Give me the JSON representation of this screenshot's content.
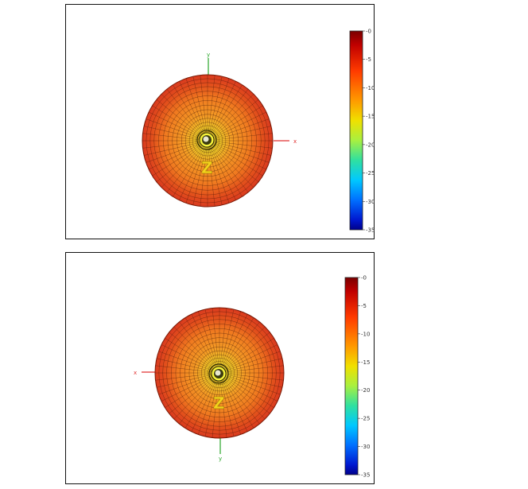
{
  "panels": [
    {
      "axis_labels": {
        "x": "x",
        "y": "y",
        "z": "Z"
      },
      "colorbar": {
        "ticks": [
          "-0",
          "-5",
          "-10",
          "-15",
          "-20",
          "-25",
          "-30",
          "-35"
        ]
      }
    },
    {
      "axis_labels": {
        "x": "x",
        "y": "y",
        "z": "Z"
      },
      "colorbar": {
        "ticks": [
          "-0",
          "-5",
          "-10",
          "-15",
          "-20",
          "-25",
          "-30",
          "-35"
        ]
      }
    }
  ],
  "colors": {
    "outer_red": "#d93a1f",
    "mid_orange": "#f07a20",
    "core_yellow": "#f6f23a",
    "mesh_line": "#3a0f05",
    "x_axis": "#e03030",
    "y_axis": "#2aa52a",
    "z_label": "#f3d21c"
  }
}
